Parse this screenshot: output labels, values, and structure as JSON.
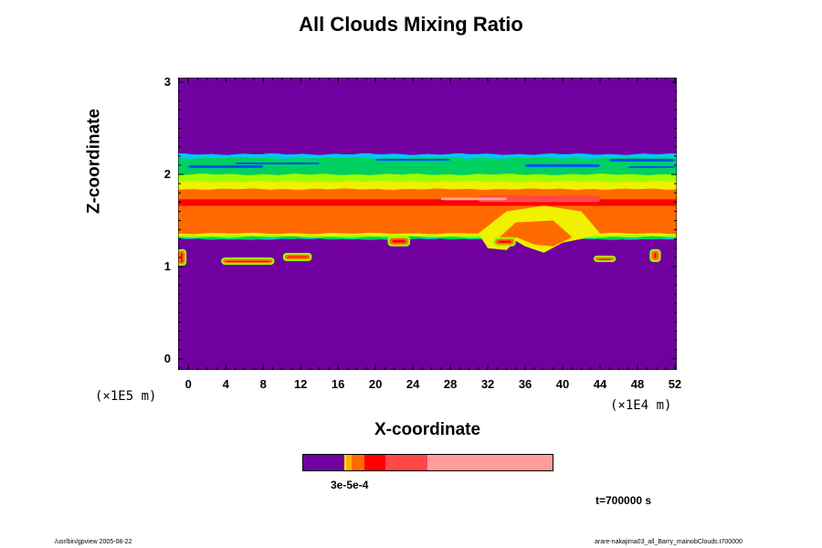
{
  "chart_data": {
    "type": "heatmap",
    "title": "All Clouds Mixing Ratio",
    "xlabel": "X-coordinate",
    "ylabel": "Z-coordinate",
    "x_scale_label": "(×1E4 m)",
    "y_scale_label": "(×1E5 m)",
    "x_ticks": [
      0,
      4,
      8,
      12,
      16,
      20,
      24,
      28,
      32,
      36,
      40,
      44,
      48,
      52
    ],
    "y_ticks": [
      0,
      1,
      2,
      3
    ],
    "xlim": [
      -1.1,
      52.2
    ],
    "ylim": [
      -0.12,
      3.05
    ],
    "colorbar_tick_label": "3e-5e-4",
    "time_label": "t=700000 s",
    "colors": {
      "background": "#7000a0",
      "blue": "#0050ff",
      "cyan": "#00c8ff",
      "green": "#00d060",
      "lime": "#a0ff00",
      "yellow": "#f0f000",
      "orange": "#ff6a00",
      "red": "#ff0000",
      "salmon": "#ff4848",
      "pink": "#ff9c9c"
    },
    "colorbar_colors": [
      "#7000a0",
      "#f0f000",
      "#ffb000",
      "#ff6a00",
      "#ff0000",
      "#ff4848",
      "#ff9c9c"
    ]
  },
  "footer": {
    "left": "/usr/bin/gpview 2005-08-22",
    "right": "arare-nakajima03_all_Barry_mainobClouds.t700000"
  }
}
